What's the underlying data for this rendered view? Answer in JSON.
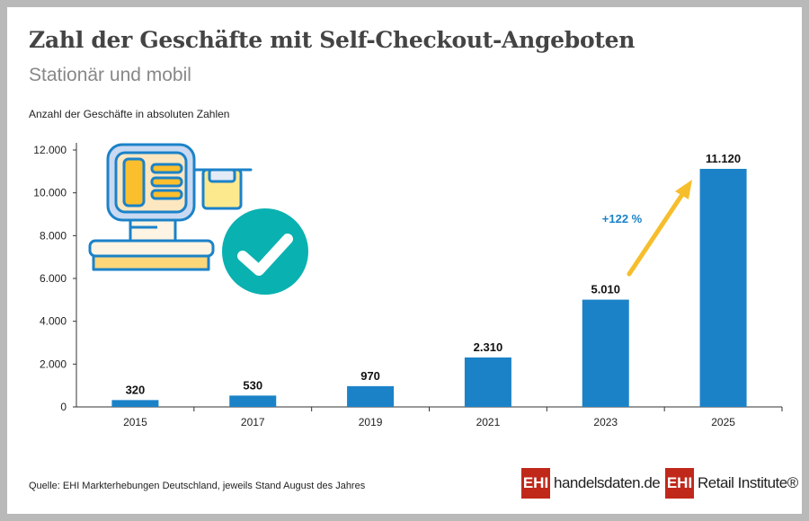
{
  "title": "Zahl der Geschäfte mit Self-Checkout-Angeboten",
  "subtitle": "Stationär und mobil",
  "source": "Quelle: EHI Markterhebungen Deutschland, jeweils Stand August des Jahres",
  "logos": {
    "left_badge": "EHI",
    "left_text": "handelsdaten.de",
    "right_badge": "EHI",
    "right_text": "Retail Institute®"
  },
  "colors": {
    "bar": "#1b82c8",
    "arrow": "#f6be2c",
    "annotation": "#1b82c8",
    "check": "#0ab1b1"
  },
  "icons": [
    "self-checkout-terminal-icon",
    "checkmark-circle-icon"
  ],
  "chart_data": {
    "type": "bar",
    "title": "Zahl der Geschäfte mit Self-Checkout-Angeboten",
    "subtitle": "Stationär und mobil",
    "ylabel": "Anzahl der Geschäfte in absoluten Zahlen",
    "categories": [
      "2015",
      "2017",
      "2019",
      "2021",
      "2023",
      "2025"
    ],
    "values": [
      320,
      530,
      970,
      2310,
      5010,
      11120
    ],
    "value_labels": [
      "320",
      "530",
      "970",
      "2.310",
      "5.010",
      "11.120"
    ],
    "yticks": [
      0,
      2000,
      4000,
      6000,
      8000,
      10000,
      12000
    ],
    "ytick_labels": [
      "0",
      "2.000",
      "4.000",
      "6.000",
      "8.000",
      "10.000",
      "12.000"
    ],
    "ylim": [
      0,
      12000
    ],
    "grid": false,
    "annotation": {
      "text": "+122 %",
      "from": "2023",
      "to": "2025"
    }
  }
}
